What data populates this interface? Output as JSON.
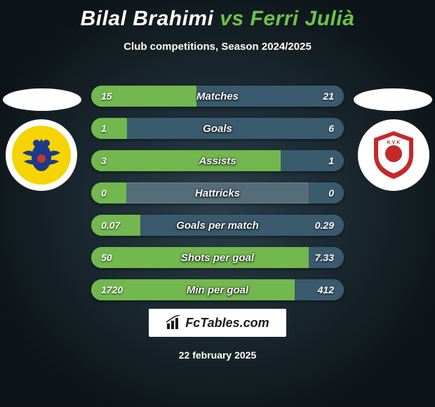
{
  "title": {
    "p1": "Bilal Brahimi",
    "vs": "vs",
    "p2": "Ferri Julià"
  },
  "subtitle": "Club competitions, Season 2024/2025",
  "colors": {
    "left_seg": "#72b84e",
    "right_seg": "#3a5a6e",
    "bg_seg": "#556c79"
  },
  "crest_left": {
    "outer": "#ffffff",
    "inner_bg": "#f5d400",
    "eagle_body": "#1d3a8a"
  },
  "crest_right": {
    "outer": "#ffffff",
    "shield": "#c62828",
    "shield_inner": "#ffffff"
  },
  "rows": [
    {
      "label": "Matches",
      "left_val": "15",
      "right_val": "21",
      "left_num": 15,
      "right_num": 21
    },
    {
      "label": "Goals",
      "left_val": "1",
      "right_val": "6",
      "left_num": 1,
      "right_num": 6
    },
    {
      "label": "Assists",
      "left_val": "3",
      "right_val": "1",
      "left_num": 3,
      "right_num": 1
    },
    {
      "label": "Hattricks",
      "left_val": "0",
      "right_val": "0",
      "left_num": 0,
      "right_num": 0
    },
    {
      "label": "Goals per match",
      "left_val": "0.07",
      "right_val": "0.29",
      "left_num": 0.07,
      "right_num": 0.29
    },
    {
      "label": "Shots per goal",
      "left_val": "50",
      "right_val": "7.33",
      "left_num": 50,
      "right_num": 7.33
    },
    {
      "label": "Min per goal",
      "left_val": "1720",
      "right_val": "412",
      "left_num": 1720,
      "right_num": 412
    }
  ],
  "footer_brand": "FcTables.com",
  "footer_date": "22 february 2025"
}
